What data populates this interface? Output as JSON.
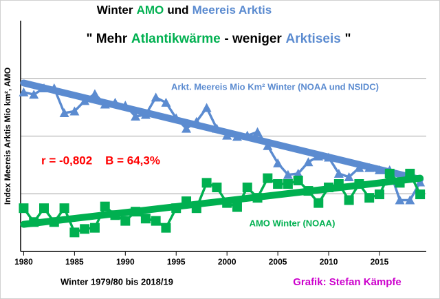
{
  "chart_data": {
    "type": "line",
    "title_parts": [
      {
        "text": "Winter",
        "color": "#000000"
      },
      {
        "text": "AMO",
        "color": "#00b050"
      },
      {
        "text": "und",
        "color": "#000000"
      },
      {
        "text": "Meereis Arktis",
        "color": "#5b8bd0"
      }
    ],
    "subtitle_parts": [
      {
        "text": "\" Mehr",
        "color": "#000000"
      },
      {
        "text": "Atlantikwärme",
        "color": "#00b050"
      },
      {
        "text": "- weniger",
        "color": "#000000"
      },
      {
        "text": "Arktiseis",
        "color": "#5b8bd0"
      },
      {
        "text": "\"",
        "color": "#000000"
      }
    ],
    "y_label": "Index Meereis Arktis Mio km², AMO",
    "x": [
      1980,
      1981,
      1982,
      1983,
      1984,
      1985,
      1986,
      1987,
      1988,
      1989,
      1990,
      1991,
      1992,
      1993,
      1994,
      1995,
      1996,
      1997,
      1998,
      1999,
      2000,
      2001,
      2002,
      2003,
      2004,
      2005,
      2006,
      2007,
      2008,
      2009,
      2010,
      2011,
      2012,
      2013,
      2014,
      2015,
      2016,
      2017,
      2018,
      2019
    ],
    "series": [
      {
        "name": "Arkt. Meereis Mio Km² Winter (NOAA und NSIDC)",
        "color": "#5b8bd0",
        "marker": "triangle",
        "values": [
          2.76,
          2.72,
          2.83,
          2.83,
          2.4,
          2.43,
          2.61,
          2.73,
          2.55,
          2.58,
          2.53,
          2.34,
          2.37,
          2.67,
          2.58,
          2.31,
          2.13,
          2.25,
          2.49,
          2.13,
          2.01,
          1.99,
          2.01,
          2.07,
          1.83,
          1.53,
          1.33,
          1.35,
          1.55,
          1.65,
          1.63,
          1.35,
          1.29,
          1.45,
          1.45,
          1.41,
          1.41,
          0.89,
          0.89,
          1.2
        ],
        "trend": {
          "x": [
            1980,
            2019
          ],
          "values": [
            2.92,
            1.25
          ]
        }
      },
      {
        "name": "AMO Winter (NOAA)",
        "color": "#00b050",
        "marker": "square",
        "values": [
          0.75,
          0.51,
          0.75,
          0.51,
          0.75,
          0.33,
          0.39,
          0.41,
          0.78,
          0.63,
          0.53,
          0.69,
          0.57,
          0.53,
          0.41,
          0.75,
          0.87,
          0.75,
          1.19,
          1.11,
          0.84,
          0.77,
          1.11,
          0.93,
          1.27,
          1.17,
          1.17,
          1.23,
          1.05,
          0.84,
          1.11,
          1.17,
          0.89,
          1.17,
          0.93,
          0.99,
          1.35,
          1.19,
          1.35,
          0.99
        ],
        "trend": {
          "x": [
            1980,
            2019
          ],
          "values": [
            0.47,
            1.27
          ]
        }
      }
    ],
    "annotation": {
      "text": "r = -0,802    B = 64,3%",
      "color": "#ff0000"
    },
    "footer_left": "Winter 1979/80 bis 2018/19",
    "footer_right": {
      "text": "Grafik: Stefan Kämpfe",
      "color": "#cc00cc"
    },
    "xlim": [
      1979.7,
      2019.6
    ],
    "xticks": [
      1980,
      1985,
      1990,
      1995,
      2000,
      2005,
      2010,
      2015
    ],
    "ylim": [
      0,
      4
    ],
    "yticks": [
      1,
      2,
      3
    ],
    "grid": true
  }
}
